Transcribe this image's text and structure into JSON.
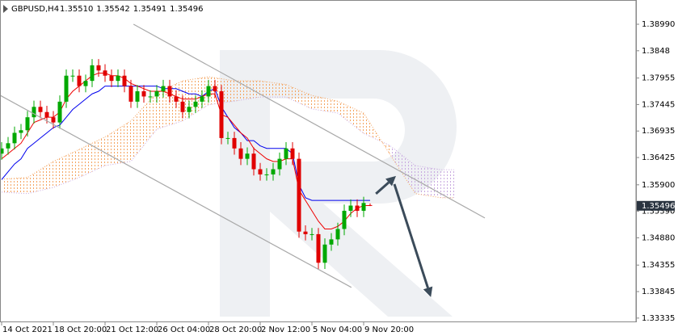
{
  "chart_data": {
    "type": "candlestick",
    "symbol": "GBPUSD,H4",
    "header_quote": [
      {
        "value": 1.3551,
        "label": "1.35510"
      },
      1.35542,
      1.35491,
      1.35496
    ],
    "open": [
      1.365,
      1.366,
      1.367,
      1.369,
      1.3695,
      1.372,
      1.374,
      1.373,
      1.372,
      1.371,
      1.375,
      1.38,
      1.38,
      1.378,
      1.379,
      1.382,
      1.381,
      1.38,
      1.379,
      1.38,
      1.378,
      1.375,
      1.377,
      1.376,
      1.376,
      1.377,
      1.378,
      1.376,
      1.375,
      1.373,
      1.374,
      1.375,
      1.376,
      1.378,
      1.377,
      1.368,
      1.368,
      1.366,
      1.364,
      1.365,
      1.362,
      1.361,
      1.361,
      1.362,
      1.364,
      1.366,
      1.364,
      1.35,
      1.3495,
      1.3495,
      1.344,
      1.3475,
      1.3485,
      1.3505,
      1.354,
      1.355,
      1.354,
      1.3551
    ],
    "high": [
      1.3672,
      1.3682,
      1.3702,
      1.3707,
      1.3732,
      1.3752,
      1.3752,
      1.3742,
      1.3732,
      1.3762,
      1.3812,
      1.3812,
      1.3812,
      1.3802,
      1.3832,
      1.3832,
      1.3822,
      1.3812,
      1.3812,
      1.3812,
      1.3792,
      1.3782,
      1.3782,
      1.3772,
      1.3782,
      1.3792,
      1.3792,
      1.3772,
      1.3762,
      1.3752,
      1.3762,
      1.3772,
      1.3792,
      1.3792,
      1.3782,
      1.3692,
      1.3692,
      1.3672,
      1.3662,
      1.3662,
      1.3632,
      1.3622,
      1.3632,
      1.3652,
      1.3672,
      1.3672,
      1.3652,
      1.3512,
      1.3507,
      1.3507,
      1.3487,
      1.3497,
      1.3517,
      1.3552,
      1.3562,
      1.3562,
      1.3567,
      1.35542
    ],
    "low": [
      1.3638,
      1.3648,
      1.3658,
      1.3678,
      1.3683,
      1.3708,
      1.3718,
      1.3708,
      1.3698,
      1.3698,
      1.3738,
      1.3788,
      1.3768,
      1.3768,
      1.3778,
      1.3798,
      1.3788,
      1.3778,
      1.3778,
      1.3768,
      1.3738,
      1.3738,
      1.3748,
      1.3748,
      1.3748,
      1.3758,
      1.3748,
      1.3738,
      1.3718,
      1.3718,
      1.3728,
      1.3738,
      1.3748,
      1.3758,
      1.3668,
      1.3668,
      1.3648,
      1.3628,
      1.3628,
      1.3608,
      1.3598,
      1.3598,
      1.3598,
      1.3608,
      1.3628,
      1.3628,
      1.3488,
      1.3483,
      1.3483,
      1.3428,
      1.3428,
      1.3463,
      1.3473,
      1.3493,
      1.3528,
      1.3528,
      1.3528,
      1.35491
    ],
    "close": [
      1.366,
      1.367,
      1.369,
      1.3695,
      1.372,
      1.374,
      1.373,
      1.372,
      1.371,
      1.375,
      1.38,
      1.38,
      1.378,
      1.379,
      1.382,
      1.381,
      1.38,
      1.379,
      1.38,
      1.378,
      1.375,
      1.377,
      1.376,
      1.376,
      1.377,
      1.378,
      1.376,
      1.375,
      1.373,
      1.374,
      1.375,
      1.376,
      1.378,
      1.377,
      1.368,
      1.368,
      1.366,
      1.364,
      1.365,
      1.362,
      1.361,
      1.361,
      1.362,
      1.364,
      1.366,
      1.364,
      1.35,
      1.3495,
      1.3495,
      1.344,
      1.3475,
      1.3485,
      1.3505,
      1.354,
      1.355,
      1.354,
      1.3555,
      1.35496
    ],
    "up_color": "#00a800",
    "down_color": "#e00000",
    "lines": [
      {
        "color": "#0000ee",
        "values": [
          1.36,
          1.3615,
          1.363,
          1.364,
          1.366,
          1.367,
          1.368,
          1.369,
          1.37,
          1.3705,
          1.372,
          1.3735,
          1.3745,
          1.3755,
          1.3765,
          1.377,
          1.378,
          1.378,
          1.378,
          1.378,
          1.378,
          1.378,
          1.378,
          1.378,
          1.378,
          1.3775,
          1.3775,
          1.3775,
          1.377,
          1.3765,
          1.3765,
          1.376,
          1.377,
          1.3775,
          1.374,
          1.372,
          1.37,
          1.369,
          1.3675,
          1.3675,
          1.3665,
          1.366,
          1.366,
          1.366,
          1.366,
          1.365,
          1.359,
          1.3565,
          1.356,
          1.356,
          1.356,
          1.356,
          1.356,
          1.356,
          1.356,
          1.356,
          1.356,
          1.356
        ]
      },
      {
        "color": "#ee0000",
        "values": [
          1.364,
          1.365,
          1.366,
          1.367,
          1.369,
          1.371,
          1.3715,
          1.372,
          1.372,
          1.373,
          1.3755,
          1.377,
          1.378,
          1.379,
          1.38,
          1.3805,
          1.3805,
          1.38,
          1.38,
          1.3795,
          1.3785,
          1.378,
          1.3775,
          1.377,
          1.377,
          1.377,
          1.3765,
          1.376,
          1.3755,
          1.3755,
          1.3755,
          1.376,
          1.3765,
          1.3765,
          1.3725,
          1.372,
          1.3705,
          1.369,
          1.368,
          1.366,
          1.365,
          1.364,
          1.3635,
          1.3635,
          1.364,
          1.364,
          1.358,
          1.356,
          1.354,
          1.352,
          1.3505,
          1.3505,
          1.351,
          1.352,
          1.3535,
          1.3545,
          1.355,
          1.355
        ]
      }
    ],
    "cloud": {
      "x": [
        0,
        4,
        8,
        12,
        16,
        20,
        24,
        28,
        32,
        36,
        40,
        44,
        48,
        52,
        56,
        60,
        64,
        68,
        70
      ],
      "span_a": [
        1.3576,
        1.3573,
        1.3585,
        1.3604,
        1.3627,
        1.3635,
        1.3697,
        1.3713,
        1.3744,
        1.3751,
        1.3759,
        1.3759,
        1.3736,
        1.3728,
        1.3689,
        1.3666,
        1.3627,
        1.3619,
        1.3619
      ],
      "span_b": [
        1.3601,
        1.3604,
        1.3635,
        1.3658,
        1.3682,
        1.3713,
        1.3767,
        1.379,
        1.3798,
        1.379,
        1.379,
        1.3783,
        1.3762,
        1.3751,
        1.3728,
        1.365,
        1.3573,
        1.3565,
        1.3565
      ],
      "bear_color": "#f4a460",
      "bull_color": "#c8a8e0"
    },
    "trend_lines": [
      {
        "color": "#a8a8a8",
        "x": [
          20.4,
          74.75
        ],
        "y": [
          1.3899,
          1.35262
        ]
      },
      {
        "color": "#a8a8a8",
        "x": [
          -0.25,
          54.1
        ],
        "y": [
          1.37623,
          1.33926
        ]
      }
    ],
    "arrows": [
      {
        "color": "#3b4b5a",
        "x": [
          57.9,
          61
        ],
        "y": [
          1.35728,
          1.3607
        ]
      },
      {
        "color": "#3b4b5a",
        "x": [
          60.75,
          66.4
        ],
        "y": [
          1.35914,
          1.33739
        ]
      }
    ],
    "last_price": 1.35496,
    "xlim": [
      -0.25,
      98.125
    ],
    "xticks": [
      {
        "value": 0,
        "label": "14 Oct 2021"
      },
      {
        "value": 8,
        "label": "18 Oct 20:00"
      },
      {
        "value": 16,
        "label": "21 Oct 12:00"
      },
      {
        "value": 24,
        "label": "26 Oct 04:00"
      },
      {
        "value": 32,
        "label": "28 Oct 20:00"
      },
      {
        "value": 40,
        "label": "2 Nov 12:00"
      },
      {
        "value": 48,
        "label": "5 Nov 04:00"
      },
      {
        "value": 56,
        "label": "9 Nov 20:00"
      }
    ],
    "ylim": [
      1.3327,
      1.3941
    ],
    "yticks": [
      {
        "value": 1.3899,
        "label": "1.38990"
      },
      1.3848,
      1.37955,
      1.37445,
      1.36935,
      1.36425,
      {
        "value": 1.359,
        "label": "1.35900"
      },
      {
        "value": 1.3539,
        "label": "1.35390"
      },
      {
        "value": 1.3488,
        "label": "1.34880"
      },
      1.34355,
      1.33845,
      1.33335
    ]
  }
}
